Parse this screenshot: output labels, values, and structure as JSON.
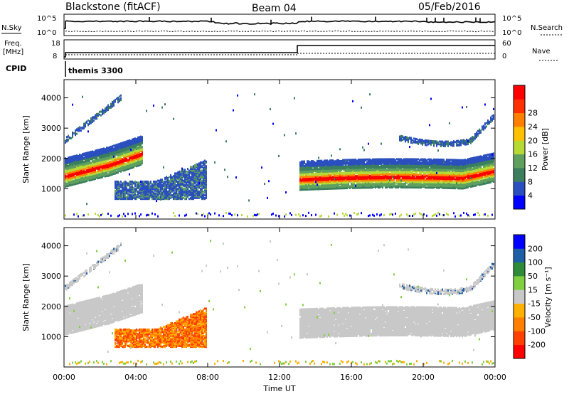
{
  "header": {
    "station": "Blackstone (fitACF)",
    "beam": "Beam 04",
    "date": "05/Feb/2016"
  },
  "aux_panels": {
    "nsky": {
      "label": "N.Sky",
      "ticks": [
        "10^5",
        "10^0"
      ],
      "right_label": "N.Search",
      "right_ticks": [
        "10^5",
        "10^0"
      ]
    },
    "freq": {
      "label_line1": "Freq.",
      "label_line2": "[MHz]",
      "ticks": [
        "18",
        "8"
      ],
      "right_label": "Nave",
      "right_ticks": [
        "60",
        "0"
      ]
    },
    "cpid": {
      "label": "CPID",
      "value": "themis 3300"
    }
  },
  "colors": {
    "power_scale": [
      "#0000ff",
      "#2b4fbf",
      "#3b7f5f",
      "#5fa05f",
      "#b7d936",
      "#ffc000",
      "#ff8000",
      "#ff3000",
      "#ff0000"
    ],
    "velocity_scale": [
      "#ff0000",
      "#ff4000",
      "#ff8000",
      "#ffb000",
      "#c8c8c8",
      "#80cf40",
      "#2e8b3a",
      "#1e5fa8",
      "#0000ff"
    ]
  },
  "chart_data": [
    {
      "type": "heatmap",
      "title": "Power",
      "xlabel": "Time UT",
      "ylabel": "Slant Range [km]",
      "x_ticks": [
        "00:00",
        "04:00",
        "08:00",
        "12:00",
        "16:00",
        "20:00",
        "00:00"
      ],
      "y_ticks": [
        "1000",
        "2000",
        "3000",
        "4000"
      ],
      "ylim": [
        0,
        4600
      ],
      "colorbar": {
        "label": "Power [dB]",
        "ticks": [
          "4",
          "8",
          "12",
          "16",
          "20",
          "24",
          "28"
        ],
        "range": [
          0,
          32
        ]
      }
    },
    {
      "type": "heatmap",
      "title": "Velocity",
      "xlabel": "Time UT",
      "ylabel": "Slant Range [km]",
      "x_ticks": [
        "00:00",
        "04:00",
        "08:00",
        "12:00",
        "16:00",
        "20:00",
        "00:00"
      ],
      "y_ticks": [
        "1000",
        "2000",
        "3000",
        "4000"
      ],
      "ylim": [
        0,
        4600
      ],
      "colorbar": {
        "label": "Velocity [m s⁻¹]",
        "ticks": [
          "200",
          "100",
          "50",
          "15",
          "-15",
          "-50",
          "-100",
          "-200"
        ]
      }
    }
  ]
}
